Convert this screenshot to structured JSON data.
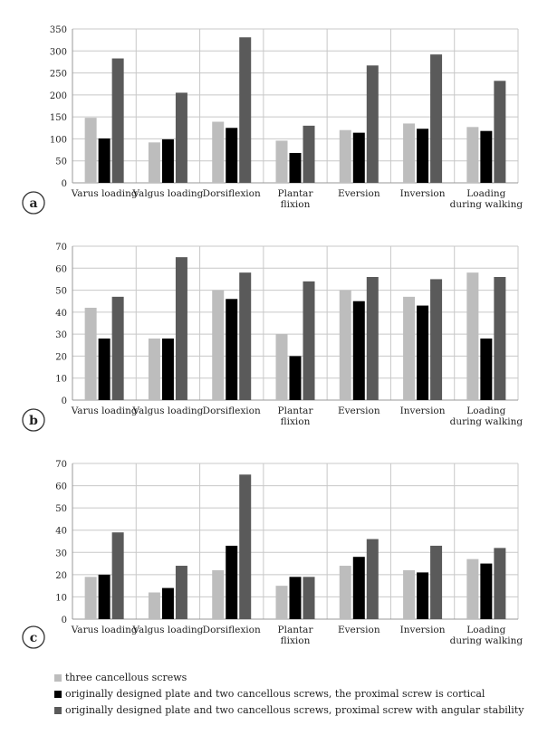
{
  "chart_data": [
    {
      "type": "bar",
      "panel_label": "a",
      "categories": [
        "Varus loading",
        "Valgus loading",
        "Dorsiflexion",
        "Plantar flixion",
        "Eversion",
        "Inversion",
        "Loading during walking"
      ],
      "ylim": [
        0,
        350
      ],
      "yticks": [
        0,
        50,
        100,
        150,
        200,
        250,
        300,
        350
      ],
      "series": [
        {
          "values": [
            148,
            92,
            139,
            96,
            120,
            135,
            127
          ]
        },
        {
          "values": [
            101,
            99,
            125,
            68,
            114,
            123,
            118
          ]
        },
        {
          "values": [
            283,
            205,
            331,
            130,
            267,
            292,
            232
          ]
        }
      ]
    },
    {
      "type": "bar",
      "panel_label": "b",
      "categories": [
        "Varus loading",
        "Valgus loading",
        "Dorsiflexion",
        "Plantar flixion",
        "Eversion",
        "Inversion",
        "Loading during walking"
      ],
      "ylim": [
        0,
        70
      ],
      "yticks": [
        0,
        10,
        20,
        30,
        40,
        50,
        60,
        70
      ],
      "series": [
        {
          "values": [
            42,
            28,
            50,
            30,
            50,
            47,
            58
          ]
        },
        {
          "values": [
            28,
            28,
            46,
            20,
            45,
            43,
            28
          ]
        },
        {
          "values": [
            47,
            65,
            58,
            54,
            56,
            55,
            56
          ]
        }
      ]
    },
    {
      "type": "bar",
      "panel_label": "c",
      "categories": [
        "Varus loading",
        "Valgus loading",
        "Dorsiflexion",
        "Plantar flixion",
        "Eversion",
        "Inversion",
        "Loading during walking"
      ],
      "ylim": [
        0,
        70
      ],
      "yticks": [
        0,
        10,
        20,
        30,
        40,
        50,
        60,
        70
      ],
      "series": [
        {
          "values": [
            19,
            12,
            22,
            15,
            24,
            22,
            27
          ]
        },
        {
          "values": [
            20,
            14,
            33,
            19,
            28,
            21,
            25
          ]
        },
        {
          "values": [
            39,
            24,
            65,
            19,
            36,
            33,
            32
          ]
        }
      ]
    }
  ],
  "legend": {
    "items": [
      {
        "label": "three cancellous screws",
        "color": "#bdbdbd"
      },
      {
        "label": "originally designed plate and two cancellous screws, the proximal screw is cortical",
        "color": "#000000"
      },
      {
        "label": "originally designed plate and two cancellous screws, proximal screw with angular stability",
        "color": "#5a5a5a"
      }
    ]
  },
  "series_colors": [
    "#bdbdbd",
    "#000000",
    "#5a5a5a"
  ]
}
